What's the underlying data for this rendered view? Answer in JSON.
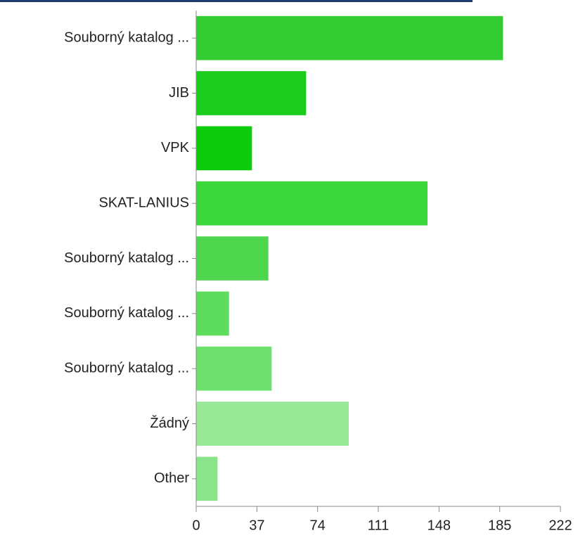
{
  "chart_data": {
    "type": "barh",
    "categories": [
      "Souborný katalog ...",
      "JIB",
      "VPK",
      "SKAT-LANIUS",
      "Souborný katalog ...",
      "Souborný katalog ...",
      "Souborný katalog ...",
      "Žádný",
      "Other"
    ],
    "values": [
      187,
      67,
      34,
      141,
      44,
      20,
      46,
      93,
      13
    ],
    "colors": [
      "#33cc33",
      "#1ccc1c",
      "#0ccc0c",
      "#3ad63a",
      "#4fd64f",
      "#5ddc5d",
      "#6ee06e",
      "#98e898",
      "#8ae48a"
    ],
    "xlim": [
      0,
      222
    ],
    "xticks": [
      0,
      37,
      74,
      111,
      148,
      185,
      222
    ]
  }
}
